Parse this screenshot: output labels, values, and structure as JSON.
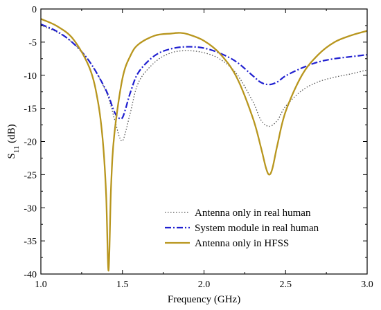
{
  "chart_data": {
    "type": "line",
    "xlabel": "Frequency (GHz)",
    "ylabel_main": "S",
    "ylabel_sub": "11",
    "ylabel_unit": " (dB)",
    "xlim": [
      1.0,
      3.0
    ],
    "ylim": [
      -40,
      0
    ],
    "x_ticks": [
      1.0,
      1.5,
      2.0,
      2.5,
      3.0
    ],
    "x_tick_labels": [
      "1.0",
      "1.5",
      "2.0",
      "2.5",
      "3.0"
    ],
    "y_ticks": [
      0,
      -5,
      -10,
      -15,
      -20,
      -25,
      -30,
      -35,
      -40
    ],
    "y_tick_labels": [
      "0",
      "-5",
      "-10",
      "-15",
      "-20",
      "-25",
      "-30",
      "-35",
      "-40"
    ],
    "grid": false,
    "legend_position": "bottom-right",
    "series": [
      {
        "name": "Antenna only in real human",
        "color": "#555555",
        "style": "dotted",
        "x": [
          1.0,
          1.1,
          1.2,
          1.3,
          1.4,
          1.45,
          1.48,
          1.5,
          1.52,
          1.55,
          1.6,
          1.7,
          1.8,
          1.9,
          2.0,
          2.1,
          2.2,
          2.3,
          2.35,
          2.4,
          2.45,
          2.5,
          2.6,
          2.7,
          2.8,
          2.9,
          3.0
        ],
        "y": [
          -2.5,
          -3.5,
          -5.2,
          -8.0,
          -12.5,
          -16.5,
          -19.2,
          -19.9,
          -18.5,
          -15.5,
          -11.0,
          -8.0,
          -6.6,
          -6.3,
          -6.6,
          -7.6,
          -9.8,
          -14.0,
          -16.8,
          -17.7,
          -16.8,
          -14.7,
          -12.3,
          -11.0,
          -10.3,
          -9.8,
          -9.2
        ]
      },
      {
        "name": "System module in real human",
        "color": "#1f1fd0",
        "style": "dashdot",
        "x": [
          1.0,
          1.1,
          1.2,
          1.3,
          1.4,
          1.45,
          1.48,
          1.5,
          1.52,
          1.55,
          1.6,
          1.7,
          1.8,
          1.9,
          2.0,
          2.1,
          2.2,
          2.3,
          2.35,
          2.4,
          2.45,
          2.5,
          2.6,
          2.7,
          2.8,
          2.9,
          3.0
        ],
        "y": [
          -2.3,
          -3.4,
          -5.2,
          -8.0,
          -12.3,
          -15.5,
          -16.5,
          -16.4,
          -15.0,
          -12.5,
          -9.5,
          -7.0,
          -6.0,
          -5.7,
          -5.9,
          -6.7,
          -8.0,
          -10.1,
          -11.1,
          -11.4,
          -11.0,
          -10.1,
          -8.9,
          -8.0,
          -7.5,
          -7.2,
          -6.9
        ]
      },
      {
        "name": "Antenna only in HFSS",
        "color": "#b8961e",
        "style": "solid",
        "x": [
          1.0,
          1.1,
          1.2,
          1.3,
          1.35,
          1.38,
          1.4,
          1.415,
          1.43,
          1.45,
          1.5,
          1.55,
          1.6,
          1.7,
          1.8,
          1.85,
          1.9,
          2.0,
          2.1,
          2.2,
          2.3,
          2.35,
          2.38,
          2.4,
          2.42,
          2.45,
          2.5,
          2.6,
          2.7,
          2.8,
          2.9,
          3.0
        ],
        "y": [
          -1.5,
          -2.6,
          -4.6,
          -9.0,
          -14.0,
          -20.0,
          -28.0,
          -39.5,
          -27.0,
          -19.0,
          -10.5,
          -7.0,
          -5.3,
          -4.0,
          -3.7,
          -3.6,
          -3.8,
          -4.8,
          -6.8,
          -10.3,
          -16.5,
          -21.0,
          -24.0,
          -25.0,
          -24.0,
          -20.5,
          -15.5,
          -10.0,
          -6.9,
          -5.0,
          -4.0,
          -3.3
        ]
      }
    ]
  }
}
